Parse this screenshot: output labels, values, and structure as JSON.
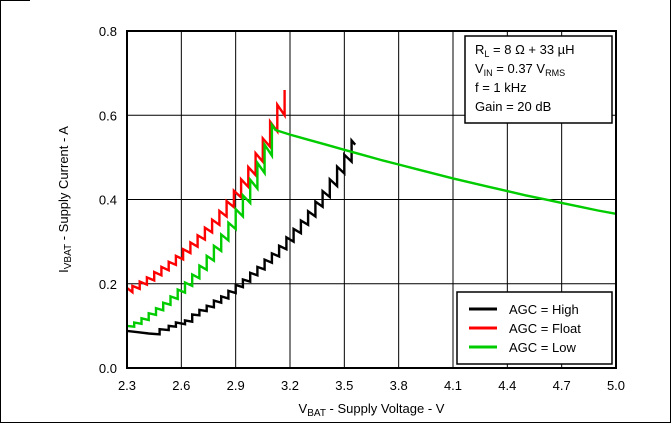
{
  "chart_data": {
    "type": "line",
    "xlabel": "V_BAT - Supply Voltage - V",
    "ylabel": "I_BAT - Supply Current - A",
    "xlabel_parts": {
      "main": "V",
      "sub": "BAT",
      "rest": " - Supply Voltage - V"
    },
    "ylabel_parts": {
      "main": "I",
      "sub": "VBAT",
      "rest": " - Supply Current - A"
    },
    "xlim": [
      2.3,
      5.0
    ],
    "ylim": [
      0.0,
      0.8
    ],
    "x_ticks": [
      "2.3",
      "2.6",
      "2.9",
      "3.2",
      "3.5",
      "3.8",
      "4.1",
      "4.4",
      "4.7",
      "5.0"
    ],
    "y_ticks": [
      "0.0",
      "0.2",
      "0.4",
      "0.6",
      "0.8"
    ],
    "grid": true,
    "legend_position": "bottom-right",
    "conditions": [
      {
        "pre": "R",
        "sub": "L",
        "post": " = 8 Ω + 33 µH",
        "sub2": "",
        "post2": ""
      },
      {
        "pre": "V",
        "sub": "IN",
        "post": " = 0.37 V",
        "sub2": "RMS",
        "post2": ""
      },
      {
        "pre": "f = 1 kHz",
        "sub": "",
        "post": "",
        "sub2": "",
        "post2": ""
      },
      {
        "pre": "Gain = 20 dB",
        "sub": "",
        "post": "",
        "sub2": "",
        "post2": ""
      }
    ],
    "series": [
      {
        "name": "AGC = High",
        "color": "#000000",
        "points": [
          [
            2.3,
            0.088
          ],
          [
            2.36,
            0.085
          ],
          [
            2.42,
            0.082
          ],
          [
            2.48,
            0.08
          ],
          [
            2.48,
            0.092
          ],
          [
            2.53,
            0.09
          ],
          [
            2.53,
            0.1
          ],
          [
            2.57,
            0.098
          ],
          [
            2.57,
            0.108
          ],
          [
            2.62,
            0.104
          ],
          [
            2.62,
            0.113
          ],
          [
            2.66,
            0.11
          ],
          [
            2.66,
            0.127
          ],
          [
            2.7,
            0.125
          ],
          [
            2.7,
            0.138
          ],
          [
            2.74,
            0.135
          ],
          [
            2.74,
            0.148
          ],
          [
            2.78,
            0.144
          ],
          [
            2.78,
            0.16
          ],
          [
            2.82,
            0.155
          ],
          [
            2.82,
            0.17
          ],
          [
            2.86,
            0.165
          ],
          [
            2.86,
            0.183
          ],
          [
            2.9,
            0.178
          ],
          [
            2.9,
            0.197
          ],
          [
            2.94,
            0.192
          ],
          [
            2.94,
            0.21
          ],
          [
            2.98,
            0.205
          ],
          [
            2.98,
            0.226
          ],
          [
            3.02,
            0.22
          ],
          [
            3.02,
            0.24
          ],
          [
            3.06,
            0.234
          ],
          [
            3.06,
            0.257
          ],
          [
            3.1,
            0.25
          ],
          [
            3.1,
            0.272
          ],
          [
            3.14,
            0.265
          ],
          [
            3.14,
            0.29
          ],
          [
            3.18,
            0.282
          ],
          [
            3.18,
            0.31
          ],
          [
            3.22,
            0.3
          ],
          [
            3.22,
            0.33
          ],
          [
            3.26,
            0.32
          ],
          [
            3.26,
            0.35
          ],
          [
            3.3,
            0.34
          ],
          [
            3.3,
            0.372
          ],
          [
            3.34,
            0.36
          ],
          [
            3.34,
            0.395
          ],
          [
            3.38,
            0.383
          ],
          [
            3.38,
            0.42
          ],
          [
            3.42,
            0.406
          ],
          [
            3.42,
            0.448
          ],
          [
            3.46,
            0.432
          ],
          [
            3.46,
            0.478
          ],
          [
            3.5,
            0.462
          ],
          [
            3.5,
            0.506
          ],
          [
            3.54,
            0.49
          ],
          [
            3.54,
            0.54
          ],
          [
            3.56,
            0.53
          ]
        ]
      },
      {
        "name": "AGC = Float",
        "color": "#ff0000",
        "points": [
          [
            2.3,
            0.19
          ],
          [
            2.33,
            0.18
          ],
          [
            2.33,
            0.195
          ],
          [
            2.37,
            0.188
          ],
          [
            2.37,
            0.205
          ],
          [
            2.41,
            0.198
          ],
          [
            2.41,
            0.215
          ],
          [
            2.45,
            0.208
          ],
          [
            2.45,
            0.228
          ],
          [
            2.49,
            0.22
          ],
          [
            2.49,
            0.24
          ],
          [
            2.53,
            0.232
          ],
          [
            2.53,
            0.252
          ],
          [
            2.57,
            0.245
          ],
          [
            2.57,
            0.266
          ],
          [
            2.61,
            0.258
          ],
          [
            2.61,
            0.282
          ],
          [
            2.65,
            0.273
          ],
          [
            2.65,
            0.298
          ],
          [
            2.69,
            0.288
          ],
          [
            2.69,
            0.315
          ],
          [
            2.73,
            0.305
          ],
          [
            2.73,
            0.333
          ],
          [
            2.77,
            0.322
          ],
          [
            2.77,
            0.352
          ],
          [
            2.81,
            0.34
          ],
          [
            2.81,
            0.373
          ],
          [
            2.85,
            0.36
          ],
          [
            2.85,
            0.396
          ],
          [
            2.89,
            0.382
          ],
          [
            2.89,
            0.421
          ],
          [
            2.93,
            0.405
          ],
          [
            2.93,
            0.448
          ],
          [
            2.97,
            0.43
          ],
          [
            2.97,
            0.477
          ],
          [
            3.01,
            0.458
          ],
          [
            3.01,
            0.51
          ],
          [
            3.05,
            0.49
          ],
          [
            3.05,
            0.545
          ],
          [
            3.09,
            0.525
          ],
          [
            3.09,
            0.585
          ],
          [
            3.13,
            0.562
          ],
          [
            3.13,
            0.625
          ],
          [
            3.17,
            0.6
          ],
          [
            3.17,
            0.66
          ]
        ]
      },
      {
        "name": "AGC = Low",
        "color": "#00cc00",
        "points": [
          [
            2.3,
            0.1
          ],
          [
            2.34,
            0.098
          ],
          [
            2.34,
            0.108
          ],
          [
            2.38,
            0.105
          ],
          [
            2.38,
            0.118
          ],
          [
            2.42,
            0.114
          ],
          [
            2.42,
            0.13
          ],
          [
            2.46,
            0.126
          ],
          [
            2.46,
            0.142
          ],
          [
            2.5,
            0.137
          ],
          [
            2.5,
            0.155
          ],
          [
            2.54,
            0.15
          ],
          [
            2.54,
            0.17
          ],
          [
            2.58,
            0.164
          ],
          [
            2.58,
            0.186
          ],
          [
            2.62,
            0.179
          ],
          [
            2.62,
            0.203
          ],
          [
            2.66,
            0.195
          ],
          [
            2.66,
            0.222
          ],
          [
            2.7,
            0.213
          ],
          [
            2.7,
            0.243
          ],
          [
            2.74,
            0.233
          ],
          [
            2.74,
            0.266
          ],
          [
            2.78,
            0.255
          ],
          [
            2.78,
            0.29
          ],
          [
            2.82,
            0.278
          ],
          [
            2.82,
            0.317
          ],
          [
            2.86,
            0.303
          ],
          [
            2.86,
            0.345
          ],
          [
            2.9,
            0.33
          ],
          [
            2.9,
            0.377
          ],
          [
            2.94,
            0.36
          ],
          [
            2.94,
            0.41
          ],
          [
            2.98,
            0.392
          ],
          [
            2.98,
            0.447
          ],
          [
            3.02,
            0.426
          ],
          [
            3.02,
            0.487
          ],
          [
            3.06,
            0.463
          ],
          [
            3.06,
            0.53
          ],
          [
            3.1,
            0.504
          ],
          [
            3.1,
            0.577
          ],
          [
            3.12,
            0.565
          ],
          [
            3.2,
            0.554
          ],
          [
            3.3,
            0.542
          ],
          [
            3.4,
            0.53
          ],
          [
            3.5,
            0.518
          ],
          [
            3.6,
            0.506
          ],
          [
            3.7,
            0.494
          ],
          [
            3.8,
            0.483
          ],
          [
            3.9,
            0.472
          ],
          [
            4.0,
            0.461
          ],
          [
            4.1,
            0.45
          ],
          [
            4.2,
            0.44
          ],
          [
            4.3,
            0.43
          ],
          [
            4.4,
            0.42
          ],
          [
            4.5,
            0.41
          ],
          [
            4.6,
            0.401
          ],
          [
            4.7,
            0.392
          ],
          [
            4.8,
            0.383
          ],
          [
            4.9,
            0.374
          ],
          [
            5.0,
            0.366
          ]
        ]
      }
    ]
  }
}
